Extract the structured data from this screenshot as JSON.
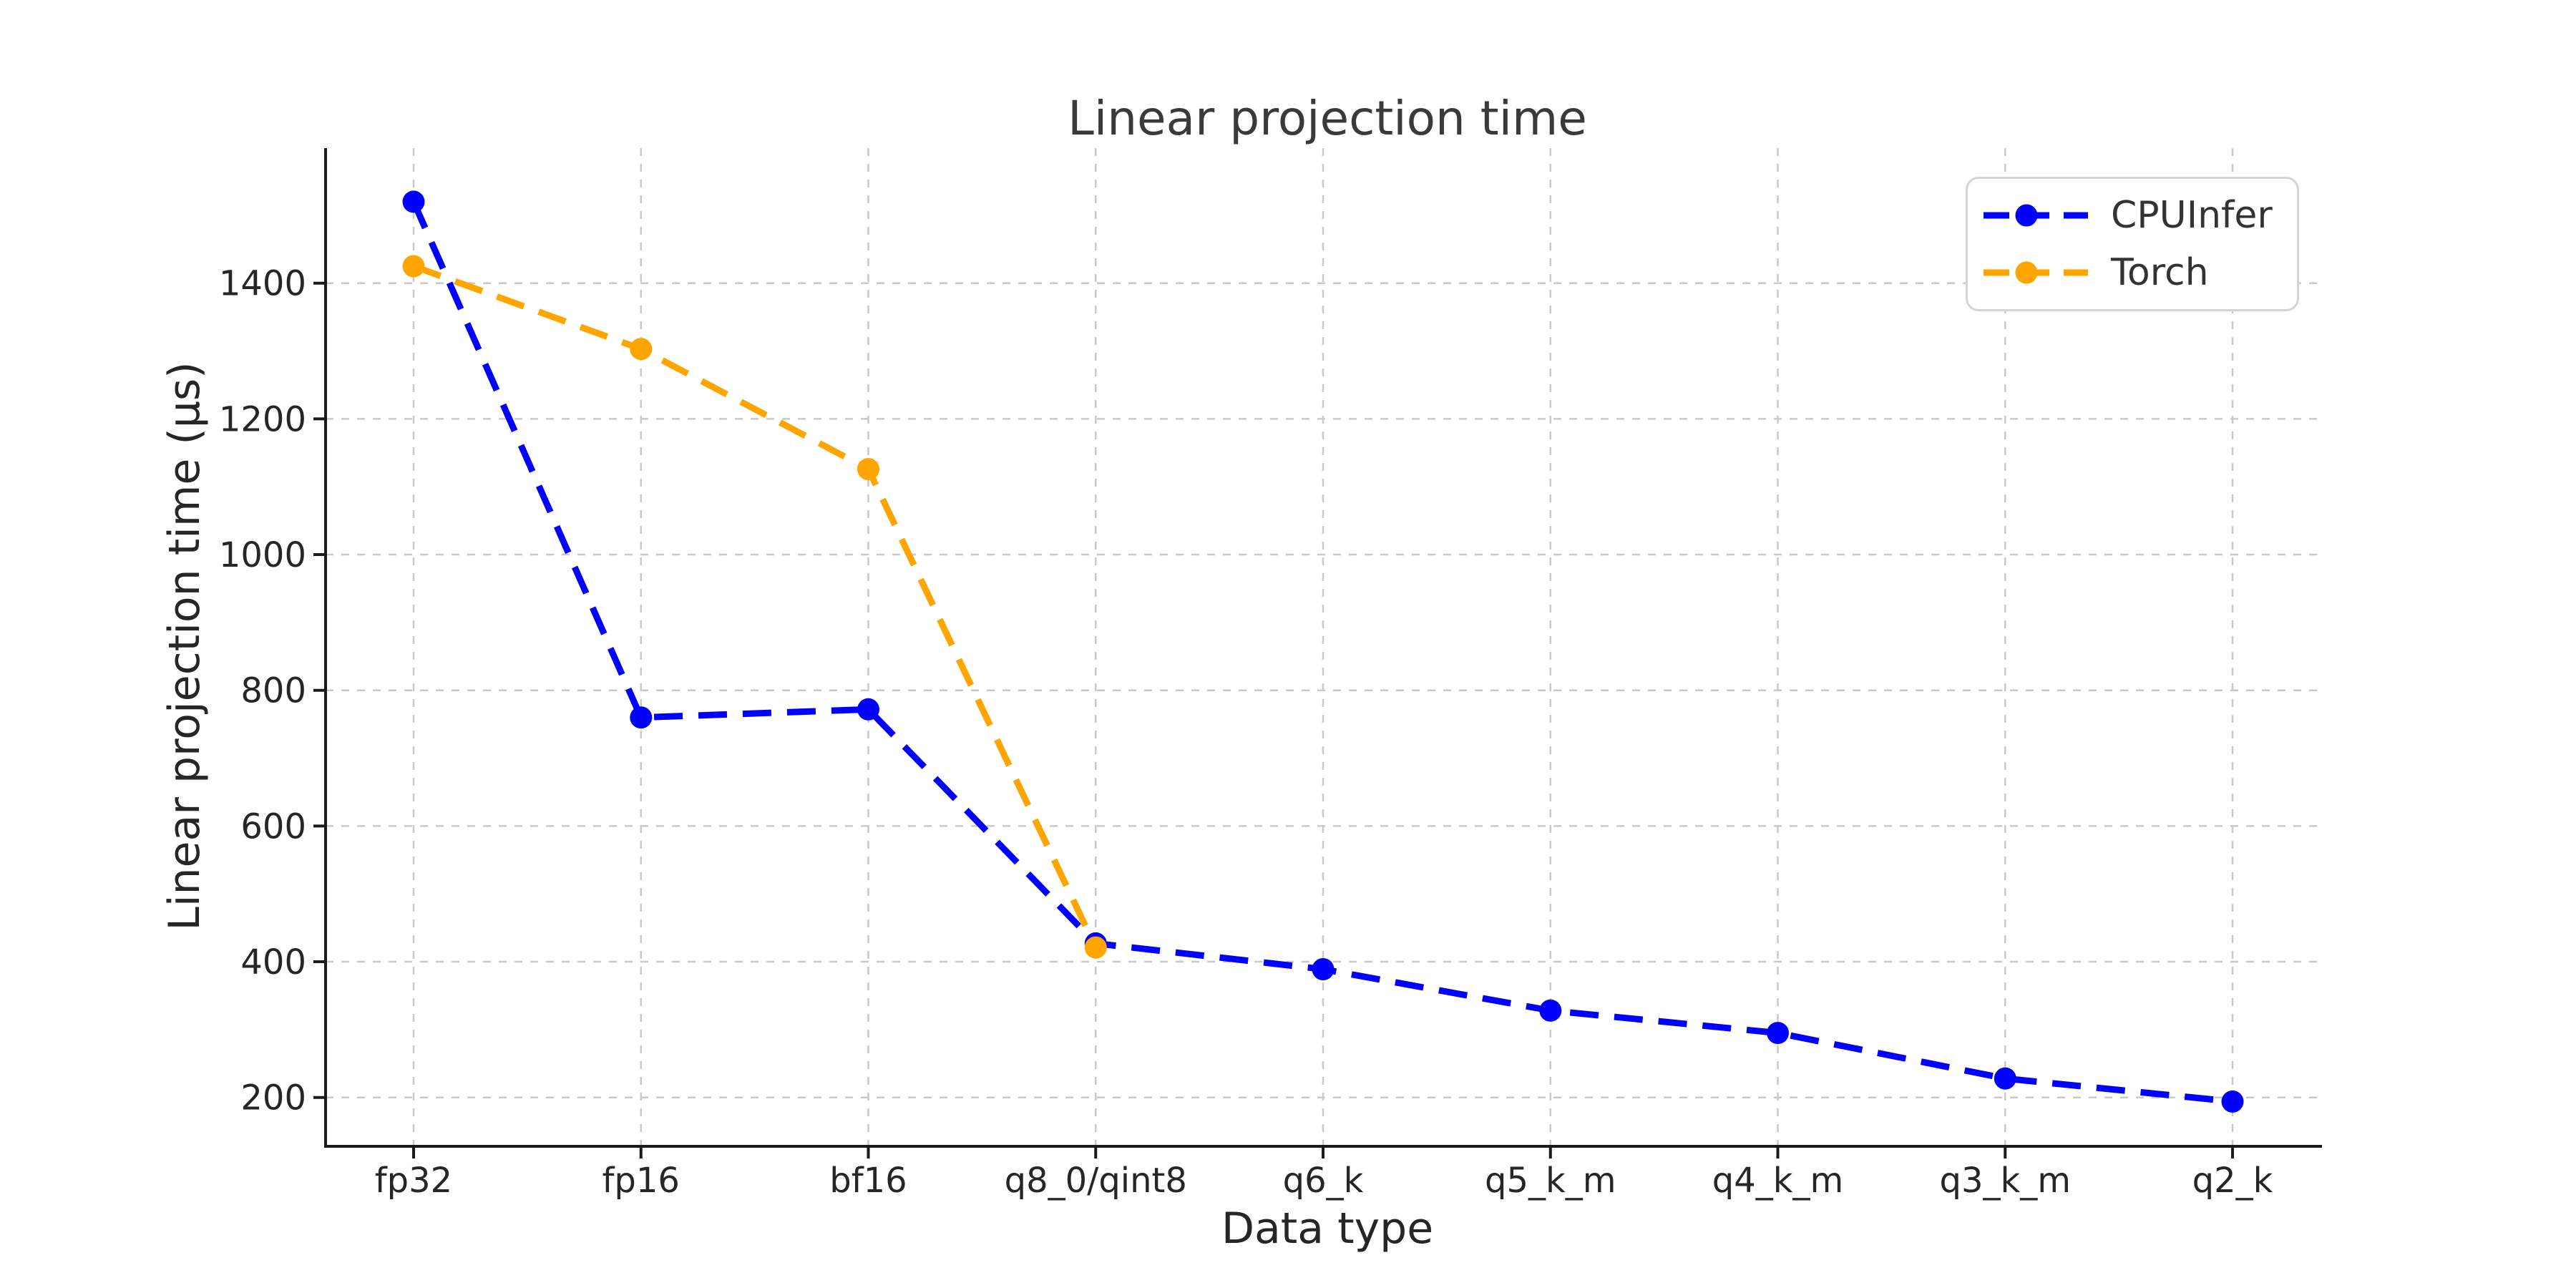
{
  "chart_data": {
    "type": "line",
    "title": "Linear projection time",
    "xlabel": "Data type",
    "ylabel": "Linear projection time (μs)",
    "categories": [
      "fp32",
      "fp16",
      "bf16",
      "q8_0/qint8",
      "q6_k",
      "q5_k_m",
      "q4_k_m",
      "q3_k_m",
      "q2_k"
    ],
    "series": [
      {
        "name": "CPUInfer",
        "color": "#0000ff",
        "values": [
          1520,
          760,
          772,
          427,
          389,
          328,
          295,
          228,
          194
        ]
      },
      {
        "name": "Torch",
        "color": "#ffa500",
        "values": [
          1425,
          1303,
          1126,
          421
        ]
      }
    ],
    "y_ticks": [
      200,
      400,
      600,
      800,
      1000,
      1200,
      1400
    ],
    "ylim": [
      128,
      1599
    ],
    "grid": true,
    "legend_position": "upper right",
    "line_style": "dashed",
    "marker": "circle",
    "style": {
      "grid_color": "#c9c9c9",
      "axis_color": "#1a1a1a",
      "text_color": "#262626",
      "legend_border_color": "#d4d4d4",
      "background": "#ffffff"
    }
  }
}
